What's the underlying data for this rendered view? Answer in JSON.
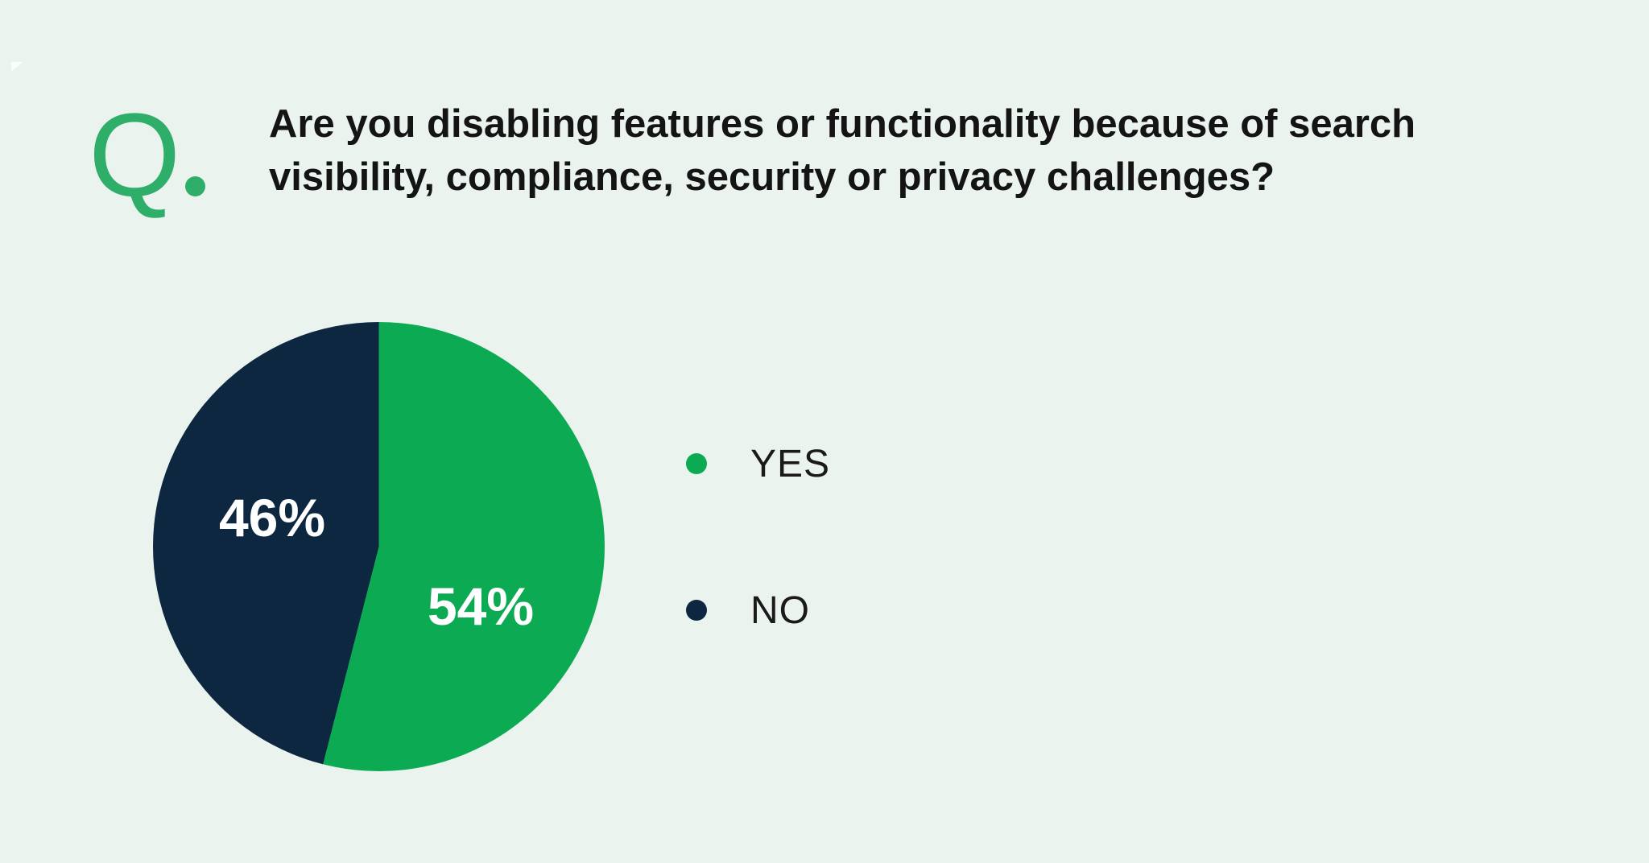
{
  "page": {
    "background": "#eaf3ee"
  },
  "question": {
    "q_label": "Q",
    "title": "Are you disabling features or functionality because of search\nvisibility, compliance, security or privacy challenges?"
  },
  "chart_data": {
    "type": "pie",
    "title": "Are you disabling features or functionality because of search visibility, compliance, security or privacy challenges?",
    "slices": [
      {
        "label": "YES",
        "value": 54,
        "display": "54%",
        "color": "#0caa52"
      },
      {
        "label": "NO",
        "value": 46,
        "display": "46%",
        "color": "#0e2741"
      }
    ],
    "start_angle_deg": 0,
    "direction": "clockwise",
    "value_labels": "inside",
    "legend_position": "right"
  },
  "legend": {
    "items": [
      {
        "label": "YES",
        "color": "#0caa52"
      },
      {
        "label": "NO",
        "color": "#0e2741"
      }
    ]
  },
  "accent_colors": {
    "q_green": "#2fae6a",
    "pie_green": "#0caa52",
    "navy": "#0e2741",
    "title_text": "#141414",
    "background": "#eaf3ee"
  }
}
